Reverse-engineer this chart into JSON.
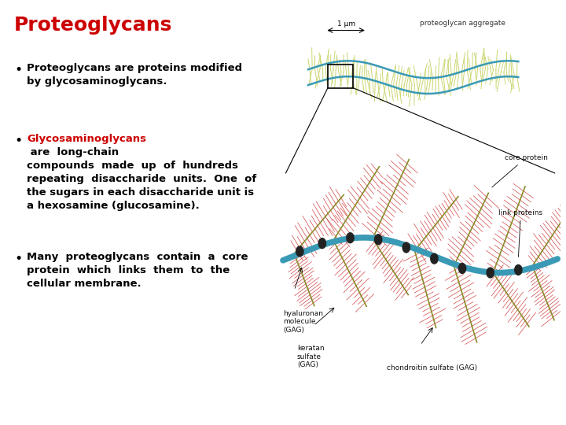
{
  "title": "Proteoglycans",
  "title_color": "#cc0000",
  "title_fontsize": 18,
  "background_color": "#ffffff",
  "bullet1": "Proteoglycans are proteins modified\nby glycosaminoglycans.",
  "bullet2_prefix": "Glycosaminoglycans",
  "bullet2_suffix": " are  long-chain\ncompounds  made  up  of  hundreds\nrepeating  disaccharide  units.  One  of\nthe sugars in each disaccharide unit is\na hexosamine (glucosamine).",
  "bullet2_color": "#cc0000",
  "bullet3": "Many  proteoglycans  contain  a  core\nprotein  which  links  them  to  the\ncellular membrane.",
  "text_fontsize": 9.5,
  "text_color": "#000000",
  "text_font": "DejaVu Sans",
  "spike_color_top": "#c8d46a",
  "hyaluron_color": "#3a9ab5",
  "core_protein_color": "#8B8B2A",
  "gag_color": "#cc3333",
  "link_color": "#222222",
  "label_fontsize": 6.5
}
